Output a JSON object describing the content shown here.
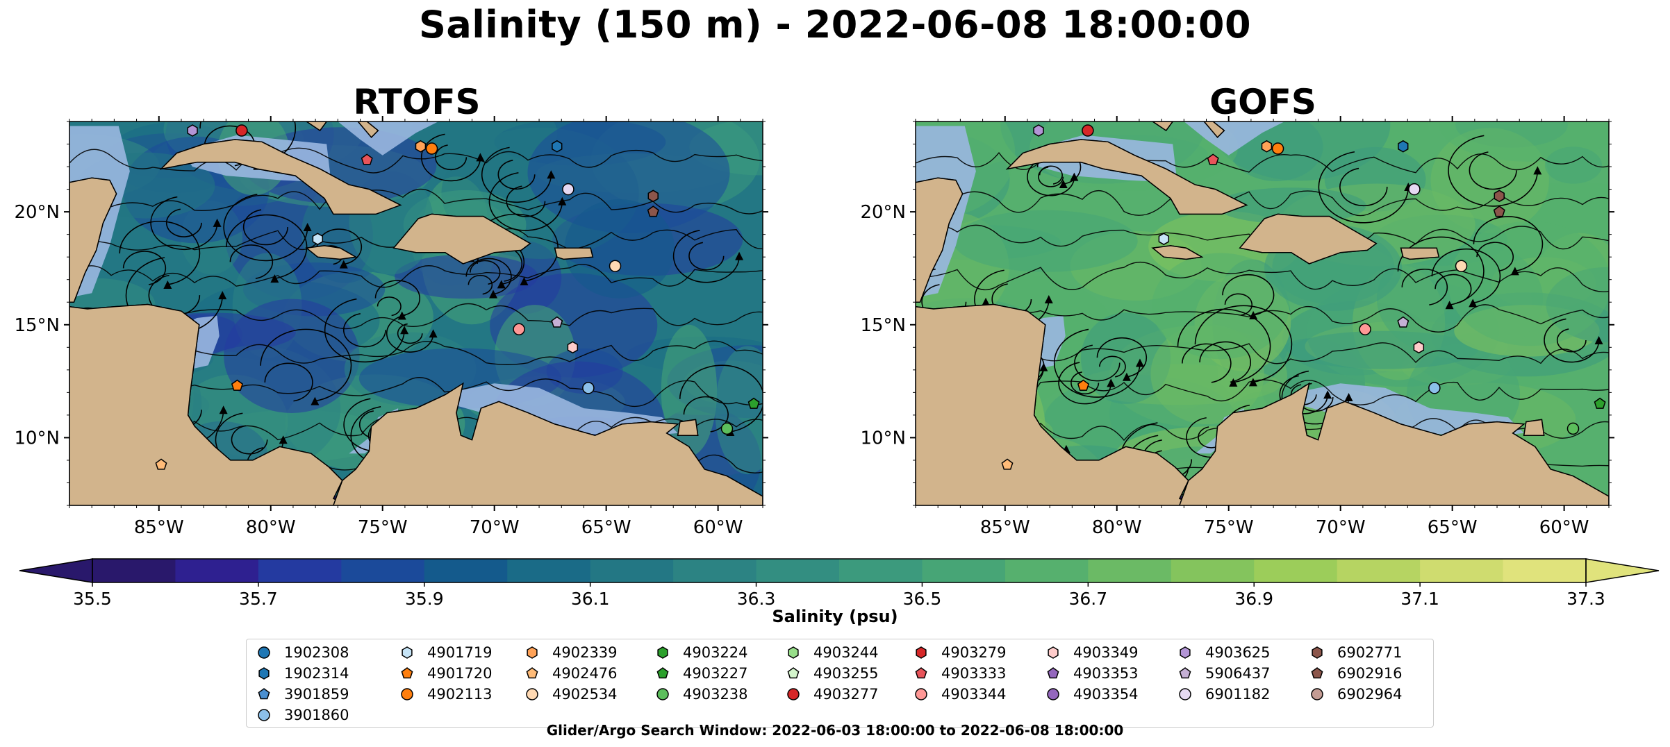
{
  "title": "Salinity (150 m) - 2022-06-08 18:00:00",
  "colors": {
    "land": "#d2b48c",
    "shallow_water": "#9ab7e0",
    "streamline": "#000000",
    "colormap": [
      "#29186b",
      "#2e2090",
      "#243aa0",
      "#1b4a9a",
      "#145a8c",
      "#1a6b87",
      "#237784",
      "#2c8383",
      "#338e81",
      "#3c9a7d",
      "#47a576",
      "#56b06e",
      "#6bba65",
      "#84c45d",
      "#9ccd5a",
      "#b6d462",
      "#cfdc6f",
      "#e0e37c"
    ]
  },
  "chart_data": [
    {
      "type": "heatmap",
      "title": "RTOFS",
      "x_ticks": [
        "85°W",
        "80°W",
        "75°W",
        "70°W",
        "65°W",
        "60°W"
      ],
      "x_tick_values": [
        -85,
        -80,
        -75,
        -70,
        -65,
        -60
      ],
      "y_ticks": [
        "20°N",
        "15°N",
        "10°N"
      ],
      "y_tick_values": [
        20,
        15,
        10
      ],
      "xlim": [
        -89,
        -58
      ],
      "ylim": [
        7,
        24
      ],
      "variable": "Salinity at 150 m",
      "dominant_range": [
        35.7,
        36.6
      ],
      "streamlines": true
    },
    {
      "type": "heatmap",
      "title": "GOFS",
      "x_ticks": [
        "85°W",
        "80°W",
        "75°W",
        "70°W",
        "65°W",
        "60°W"
      ],
      "x_tick_values": [
        -85,
        -80,
        -75,
        -70,
        -65,
        -60
      ],
      "y_ticks": [
        "20°N",
        "15°N",
        "10°N"
      ],
      "y_tick_values": [
        20,
        15,
        10
      ],
      "xlim": [
        -89,
        -58
      ],
      "ylim": [
        7,
        24
      ],
      "variable": "Salinity at 150 m",
      "dominant_range": [
        36.4,
        36.9
      ],
      "streamlines": true
    }
  ],
  "colorbar": {
    "label": "Salinity (psu)",
    "min": 35.5,
    "max": 37.3,
    "ticks": [
      "35.5",
      "35.7",
      "35.9",
      "36.1",
      "36.3",
      "36.5",
      "36.7",
      "36.9",
      "37.1",
      "37.3"
    ],
    "extend": "both"
  },
  "legend": [
    {
      "id": "1902308",
      "marker": "circle",
      "color": "#1f77b4"
    },
    {
      "id": "1902314",
      "marker": "hexagon",
      "color": "#1f77b4"
    },
    {
      "id": "3901859",
      "marker": "pentagon",
      "color": "#4a8fd0"
    },
    {
      "id": "3901860",
      "marker": "circle",
      "color": "#8cc0ea"
    },
    {
      "id": "4901719",
      "marker": "hexagon",
      "color": "#c6e4f7"
    },
    {
      "id": "4901720",
      "marker": "pentagon",
      "color": "#ff7f0e"
    },
    {
      "id": "4902113",
      "marker": "circle",
      "color": "#ff7f0e"
    },
    {
      "id": "4902339",
      "marker": "hexagon",
      "color": "#ffa257"
    },
    {
      "id": "4902476",
      "marker": "pentagon",
      "color": "#ffbb78"
    },
    {
      "id": "4902534",
      "marker": "circle",
      "color": "#ffd9b3"
    },
    {
      "id": "4903224",
      "marker": "hexagon",
      "color": "#2ca02c"
    },
    {
      "id": "4903227",
      "marker": "pentagon",
      "color": "#2ca02c"
    },
    {
      "id": "4903238",
      "marker": "circle",
      "color": "#5cbf5c"
    },
    {
      "id": "4903244",
      "marker": "hexagon",
      "color": "#98df8a"
    },
    {
      "id": "4903255",
      "marker": "pentagon",
      "color": "#d4f5cc"
    },
    {
      "id": "4903277",
      "marker": "circle",
      "color": "#d62728"
    },
    {
      "id": "4903279",
      "marker": "hexagon",
      "color": "#d62728"
    },
    {
      "id": "4903333",
      "marker": "pentagon",
      "color": "#e8545a"
    },
    {
      "id": "4903344",
      "marker": "circle",
      "color": "#ff9896"
    },
    {
      "id": "4903349",
      "marker": "hexagon",
      "color": "#ffcccb"
    },
    {
      "id": "4903353",
      "marker": "pentagon",
      "color": "#9467bd"
    },
    {
      "id": "4903354",
      "marker": "circle",
      "color": "#9467bd"
    },
    {
      "id": "4903625",
      "marker": "hexagon",
      "color": "#b395d6"
    },
    {
      "id": "5906437",
      "marker": "pentagon",
      "color": "#c5b0d5"
    },
    {
      "id": "6901182",
      "marker": "circle",
      "color": "#e6d9f2"
    },
    {
      "id": "6902771",
      "marker": "hexagon",
      "color": "#8c564b"
    },
    {
      "id": "6902916",
      "marker": "pentagon",
      "color": "#8c564b"
    },
    {
      "id": "6902964",
      "marker": "circle",
      "color": "#c49c94"
    }
  ],
  "float_positions": [
    {
      "id": "4903625",
      "lon": -83.5,
      "lat": 23.6
    },
    {
      "id": "4903277",
      "lon": -81.3,
      "lat": 23.6
    },
    {
      "id": "4903333",
      "lon": -75.7,
      "lat": 22.3
    },
    {
      "id": "4902339",
      "lon": -73.3,
      "lat": 22.9
    },
    {
      "id": "4902113",
      "lon": -72.8,
      "lat": 22.8
    },
    {
      "id": "1902314",
      "lon": -67.2,
      "lat": 22.9
    },
    {
      "id": "6901182",
      "lon": -66.7,
      "lat": 21.0
    },
    {
      "id": "6902771",
      "lon": -62.9,
      "lat": 20.7
    },
    {
      "id": "6902916",
      "lon": -62.9,
      "lat": 20.0
    },
    {
      "id": "4901719",
      "lon": -77.9,
      "lat": 18.8
    },
    {
      "id": "4902534",
      "lon": -64.6,
      "lat": 17.6
    },
    {
      "id": "5906437",
      "lon": -67.2,
      "lat": 15.1
    },
    {
      "id": "4903344",
      "lon": -68.9,
      "lat": 14.8
    },
    {
      "id": "4903349",
      "lon": -66.5,
      "lat": 14.0
    },
    {
      "id": "4901720",
      "lon": -81.5,
      "lat": 12.3
    },
    {
      "id": "3901860",
      "lon": -65.8,
      "lat": 12.2
    },
    {
      "id": "4903227",
      "lon": -58.4,
      "lat": 11.5
    },
    {
      "id": "4903238",
      "lon": -59.6,
      "lat": 10.4
    },
    {
      "id": "4902476",
      "lon": -84.9,
      "lat": 8.8
    }
  ],
  "search_window": "Glider/Argo Search Window: 2022-06-03 18:00:00 to 2022-06-08 18:00:00"
}
